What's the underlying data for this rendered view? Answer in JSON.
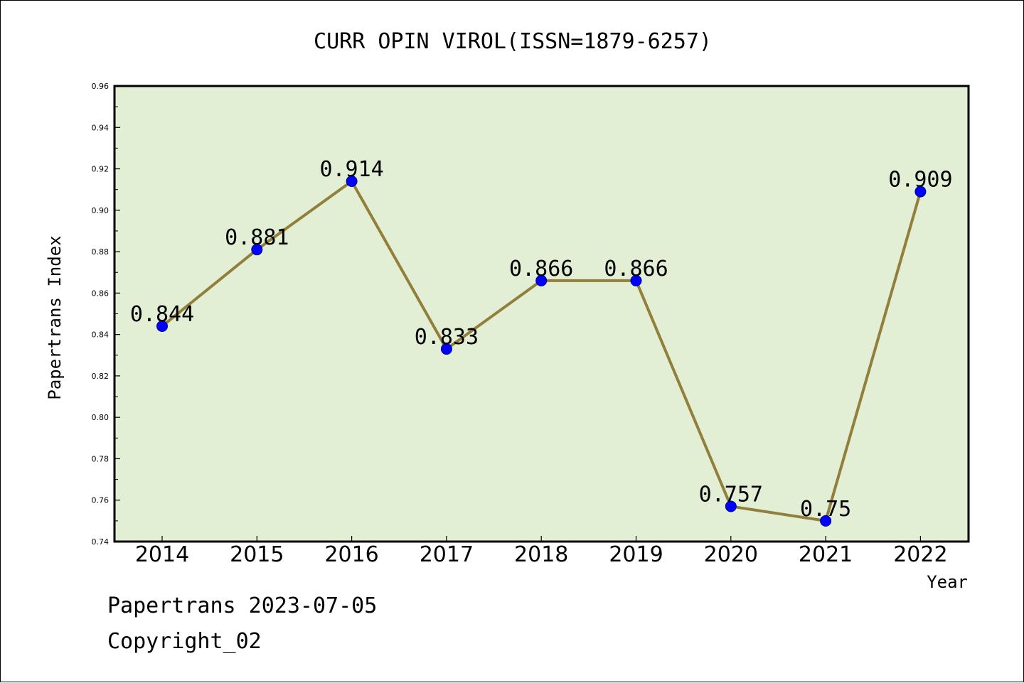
{
  "chart_data": {
    "type": "line",
    "title": "CURR OPIN VIROL(ISSN=1879-6257)",
    "xlabel": "Year",
    "ylabel": "Papertrans Index",
    "categories": [
      "2014",
      "2015",
      "2016",
      "2017",
      "2018",
      "2019",
      "2020",
      "2021",
      "2022"
    ],
    "values": [
      0.844,
      0.881,
      0.914,
      0.833,
      0.866,
      0.866,
      0.757,
      0.75,
      0.909
    ],
    "data_labels": [
      "0.844",
      "0.881",
      "0.914",
      "0.833",
      "0.866",
      "0.866",
      "0.757",
      "0.75",
      "0.909"
    ],
    "ylim": [
      0.74,
      0.96
    ],
    "yticks": [
      "0.74",
      "0.76",
      "0.78",
      "0.80",
      "0.82",
      "0.84",
      "0.86",
      "0.88",
      "0.90",
      "0.92",
      "0.94",
      "0.96"
    ],
    "grid": false,
    "legend": "none",
    "colors": {
      "line": "#917f3b",
      "marker": "#0000ff",
      "plot_background": "#e2efd5"
    }
  },
  "footer": {
    "line1": "Papertrans 2023-07-05",
    "line2": "Copyright_02"
  }
}
